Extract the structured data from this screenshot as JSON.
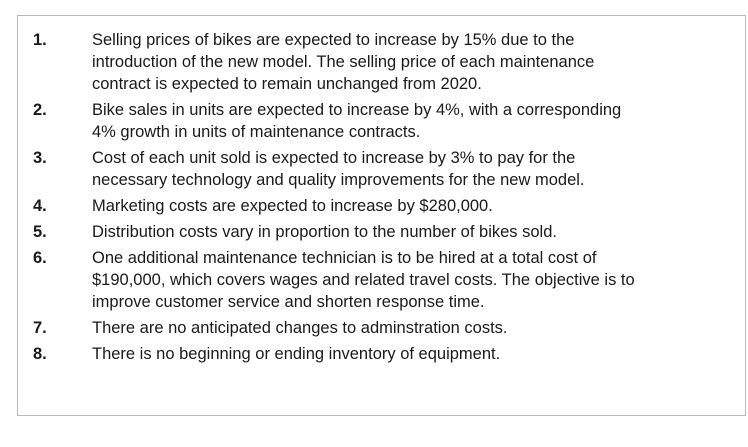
{
  "items": [
    {
      "number": "1.",
      "lines": [
        "Selling prices of bikes are expected to increase by 15% due to the",
        "introduction of the new model. The selling price of each maintenance",
        "contract is expected to remain unchanged from 2020."
      ]
    },
    {
      "number": "2.",
      "lines": [
        "Bike sales in units are expected to increase by 4%, with a corresponding",
        "4% growth in units of maintenance contracts."
      ]
    },
    {
      "number": "3.",
      "lines": [
        "Cost of each unit sold is expected to increase by 3% to pay for the",
        "necessary technology and quality improvements for the new model."
      ]
    },
    {
      "number": "4.",
      "lines": [
        "Marketing costs are expected to increase by $280,000."
      ]
    },
    {
      "number": "5.",
      "lines": [
        "Distribution costs vary in proportion to the number of bikes sold."
      ]
    },
    {
      "number": "6.",
      "lines": [
        "One additional maintenance technician is to be hired at a total cost of",
        "$190,000, which covers wages and related travel costs. The objective is to",
        "improve customer service and shorten response time."
      ]
    },
    {
      "number": "7.",
      "lines": [
        "There are no anticipated changes to adminstration costs."
      ]
    },
    {
      "number": "8.",
      "lines": [
        "There is no beginning or ending inventory of equipment."
      ]
    }
  ]
}
